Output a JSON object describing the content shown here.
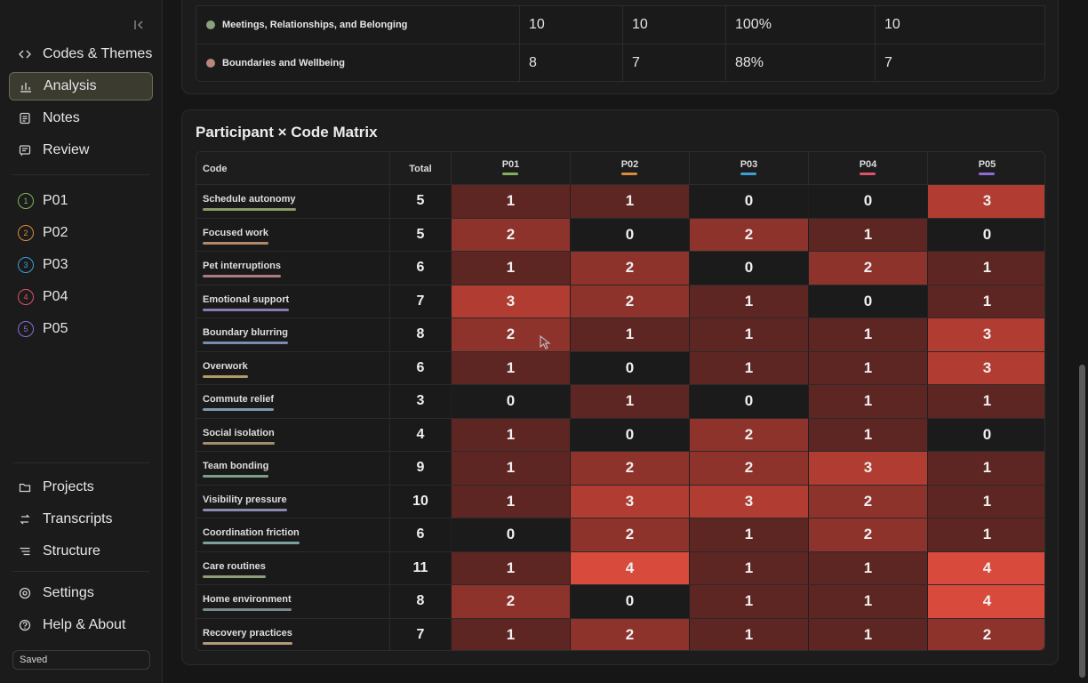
{
  "sidebar": {
    "nav": [
      {
        "label": "Codes & Themes",
        "icon": "code-icon",
        "active": false
      },
      {
        "label": "Analysis",
        "icon": "bar-chart-icon",
        "active": true
      },
      {
        "label": "Notes",
        "icon": "notes-icon",
        "active": false
      },
      {
        "label": "Review",
        "icon": "review-icon",
        "active": false
      }
    ],
    "participants": [
      {
        "num": "1",
        "label": "P01",
        "color": "#7fb35a"
      },
      {
        "num": "2",
        "label": "P02",
        "color": "#d98c3a"
      },
      {
        "num": "3",
        "label": "P03",
        "color": "#3aa0d9"
      },
      {
        "num": "4",
        "label": "P04",
        "color": "#d9546b"
      },
      {
        "num": "5",
        "label": "P05",
        "color": "#8f6ad9"
      }
    ],
    "bottom": [
      {
        "label": "Projects",
        "icon": "folder-icon"
      },
      {
        "label": "Transcripts",
        "icon": "transcripts-icon"
      },
      {
        "label": "Structure",
        "icon": "structure-icon"
      }
    ],
    "settings": [
      {
        "label": "Settings",
        "icon": "gear-icon"
      },
      {
        "label": "Help & About",
        "icon": "help-icon"
      }
    ],
    "status": "Saved"
  },
  "theme_table": {
    "rows": [
      {
        "name": "Meetings, Relationships, and Belonging",
        "color": "#8aa07e",
        "values": [
          "10",
          "10",
          "100%",
          "10"
        ]
      },
      {
        "name": "Boundaries and Wellbeing",
        "color": "#b8867a",
        "values": [
          "8",
          "7",
          "88%",
          "7"
        ]
      }
    ]
  },
  "matrix": {
    "title": "Participant × Code Matrix",
    "header_code": "Code",
    "header_total": "Total",
    "participants": [
      {
        "label": "P01",
        "color": "#7fb35a"
      },
      {
        "label": "P02",
        "color": "#d98c3a"
      },
      {
        "label": "P03",
        "color": "#3aa0d9"
      },
      {
        "label": "P04",
        "color": "#d9546b"
      },
      {
        "label": "P05",
        "color": "#8f6ad9"
      }
    ],
    "rows": [
      {
        "code": "Schedule autonomy",
        "color": "#8a9a6a",
        "total": "5",
        "values": [
          1,
          1,
          0,
          0,
          3
        ]
      },
      {
        "code": "Focused work",
        "color": "#b08a6a",
        "total": "5",
        "values": [
          2,
          0,
          2,
          1,
          0
        ]
      },
      {
        "code": "Pet interruptions",
        "color": "#b07a80",
        "total": "6",
        "values": [
          1,
          2,
          0,
          2,
          1
        ]
      },
      {
        "code": "Emotional support",
        "color": "#8a7ab0",
        "total": "7",
        "values": [
          3,
          2,
          1,
          0,
          1
        ]
      },
      {
        "code": "Boundary blurring",
        "color": "#7a8ab0",
        "total": "8",
        "values": [
          2,
          1,
          1,
          1,
          3
        ]
      },
      {
        "code": "Overwork",
        "color": "#b09a6a",
        "total": "6",
        "values": [
          1,
          0,
          1,
          1,
          3
        ]
      },
      {
        "code": "Commute relief",
        "color": "#7a9ab0",
        "total": "3",
        "values": [
          0,
          1,
          0,
          1,
          1
        ]
      },
      {
        "code": "Social isolation",
        "color": "#a0906a",
        "total": "4",
        "values": [
          1,
          0,
          2,
          1,
          0
        ]
      },
      {
        "code": "Team bonding",
        "color": "#7aa08a",
        "total": "9",
        "values": [
          1,
          2,
          2,
          3,
          1
        ]
      },
      {
        "code": "Visibility pressure",
        "color": "#8a8ab0",
        "total": "10",
        "values": [
          1,
          3,
          3,
          2,
          1
        ]
      },
      {
        "code": "Coordination friction",
        "color": "#7aa0a0",
        "total": "6",
        "values": [
          0,
          2,
          1,
          2,
          1
        ]
      },
      {
        "code": "Care routines",
        "color": "#8aa07a",
        "total": "11",
        "values": [
          1,
          4,
          1,
          1,
          4
        ]
      },
      {
        "code": "Home environment",
        "color": "#7a8a8a",
        "total": "8",
        "values": [
          2,
          0,
          1,
          1,
          4
        ]
      },
      {
        "code": "Recovery practices",
        "color": "#b09a7a",
        "total": "7",
        "values": [
          1,
          2,
          1,
          1,
          2
        ]
      }
    ],
    "heat_colors": [
      "#1b1b1b",
      "#5e2623",
      "#8e322c",
      "#b13d32",
      "#d84a3c"
    ]
  }
}
